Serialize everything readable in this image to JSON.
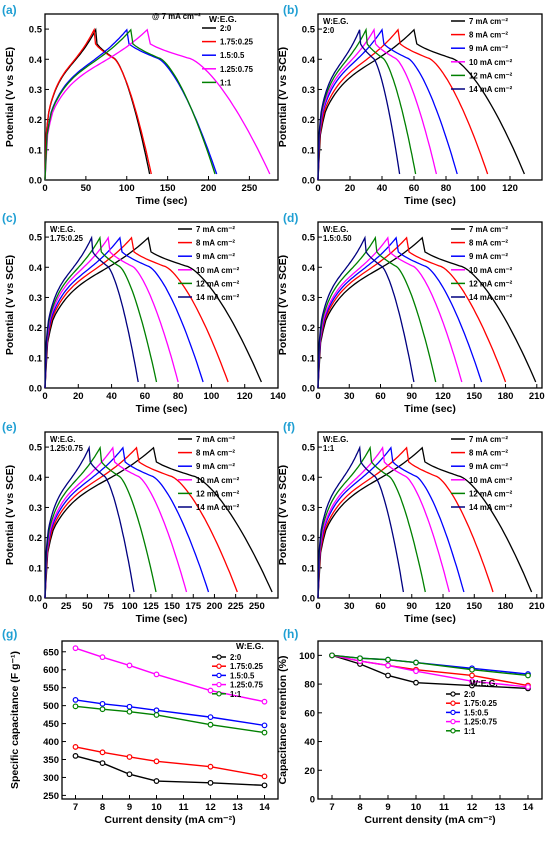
{
  "colors": {
    "2:0": "#000000",
    "1.75:0.25": "#ff0000",
    "1.5:0.5": "#0000ff",
    "1.25:0.75": "#ff00ff",
    "1:1": "#008000",
    "7 mA cm-2": "#000000",
    "8 mA cm-2": "#ff0000",
    "9 mA cm-2": "#0000ff",
    "10 mA cm-2": "#ff00ff",
    "12 mA cm-2": "#008000",
    "14 mA cm-2": "#000080",
    "panel_label": "#1f9fd3"
  },
  "chart_data": [
    {
      "id": "a",
      "panel_label": "(a)",
      "type": "line",
      "xlabel": "Time (sec)",
      "ylabel": "Potential (V vs SCE)",
      "xlim": [
        0,
        285
      ],
      "ylim": [
        0,
        0.55
      ],
      "xticks": [
        0,
        50,
        100,
        150,
        200,
        250
      ],
      "yticks": [
        0.0,
        0.1,
        0.2,
        0.3,
        0.4,
        0.5
      ],
      "annotation": "@ 7 mA cm⁻²",
      "legend_title": "W:E.G.",
      "legend_position": "top-right",
      "series": [
        {
          "name": "2:0",
          "color_key": "2:0",
          "tc": 62,
          "td": 128
        },
        {
          "name": "1.75:0.25",
          "color_key": "1.75:0.25",
          "tc": 60,
          "td": 130
        },
        {
          "name": "1.5:0.5",
          "color_key": "1.5:0.5",
          "tc": 100,
          "td": 210
        },
        {
          "name": "1.25:0.75",
          "color_key": "1.25:0.75",
          "tc": 125,
          "td": 275
        },
        {
          "name": "1:1",
          "color_key": "1:1",
          "tc": 105,
          "td": 208
        }
      ]
    },
    {
      "id": "b",
      "panel_label": "(b)",
      "type": "line",
      "xlabel": "Time (sec)",
      "ylabel": "Potential (V vs SCE)",
      "xlim": [
        0,
        140
      ],
      "ylim": [
        0,
        0.55
      ],
      "xticks": [
        0,
        20,
        40,
        60,
        80,
        100,
        120
      ],
      "yticks": [
        0.0,
        0.1,
        0.2,
        0.3,
        0.4,
        0.5
      ],
      "annotation": "W:E.G.\n2:0",
      "legend_position": "top-right",
      "series": [
        {
          "name": "7 mA cm⁻²",
          "color_key": "7 mA cm-2",
          "tc": 60,
          "td": 129
        },
        {
          "name": "8 mA cm⁻²",
          "color_key": "8 mA cm-2",
          "tc": 50,
          "td": 106
        },
        {
          "name": "9 mA cm⁻²",
          "color_key": "9 mA cm-2",
          "tc": 40,
          "td": 87
        },
        {
          "name": "10 mA cm⁻²",
          "color_key": "10 mA cm-2",
          "tc": 35,
          "td": 74
        },
        {
          "name": "12 mA cm⁻²",
          "color_key": "12 mA cm-2",
          "tc": 30,
          "td": 61
        },
        {
          "name": "14 mA cm⁻²",
          "color_key": "14 mA cm-2",
          "tc": 26,
          "td": 51
        }
      ]
    },
    {
      "id": "c",
      "panel_label": "(c)",
      "type": "line",
      "xlabel": "Time (sec)",
      "ylabel": "Potential (V vs SCE)",
      "xlim": [
        0,
        140
      ],
      "ylim": [
        0,
        0.55
      ],
      "xticks": [
        0,
        20,
        40,
        60,
        80,
        100,
        120,
        140
      ],
      "yticks": [
        0.0,
        0.1,
        0.2,
        0.3,
        0.4,
        0.5
      ],
      "annotation": "W:E.G.\n1.75:0.25",
      "legend_position": "top-right",
      "series": [
        {
          "name": "7 mA cm⁻²",
          "color_key": "7 mA cm-2",
          "tc": 62,
          "td": 130
        },
        {
          "name": "8 mA cm⁻²",
          "color_key": "8 mA cm-2",
          "tc": 52,
          "td": 110
        },
        {
          "name": "9 mA cm⁻²",
          "color_key": "9 mA cm-2",
          "tc": 45,
          "td": 95
        },
        {
          "name": "10 mA cm⁻²",
          "color_key": "10 mA cm-2",
          "tc": 38,
          "td": 80
        },
        {
          "name": "12 mA cm⁻²",
          "color_key": "12 mA cm-2",
          "tc": 33,
          "td": 67
        },
        {
          "name": "14 mA cm⁻²",
          "color_key": "14 mA cm-2",
          "tc": 28,
          "td": 56
        }
      ]
    },
    {
      "id": "d",
      "panel_label": "(d)",
      "type": "line",
      "xlabel": "Time (sec)",
      "ylabel": "Potential (V vs SCE)",
      "xlim": [
        0,
        215
      ],
      "ylim": [
        0,
        0.55
      ],
      "xticks": [
        0,
        30,
        60,
        90,
        120,
        150,
        180,
        210
      ],
      "yticks": [
        0.0,
        0.1,
        0.2,
        0.3,
        0.4,
        0.5
      ],
      "annotation": "W:E.G.\n1.5:0.50",
      "legend_position": "top-right",
      "series": [
        {
          "name": "7 mA cm⁻²",
          "color_key": "7 mA cm-2",
          "tc": 100,
          "td": 209
        },
        {
          "name": "8 mA cm⁻²",
          "color_key": "8 mA cm-2",
          "tc": 85,
          "td": 180
        },
        {
          "name": "9 mA cm⁻²",
          "color_key": "9 mA cm-2",
          "tc": 75,
          "td": 157
        },
        {
          "name": "10 mA cm⁻²",
          "color_key": "10 mA cm-2",
          "tc": 67,
          "td": 138
        },
        {
          "name": "12 mA cm⁻²",
          "color_key": "12 mA cm-2",
          "tc": 55,
          "td": 113
        },
        {
          "name": "14 mA cm⁻²",
          "color_key": "14 mA cm-2",
          "tc": 45,
          "td": 92
        }
      ]
    },
    {
      "id": "e",
      "panel_label": "(e)",
      "type": "line",
      "xlabel": "Time (sec)",
      "ylabel": "Potential (V vs SCE)",
      "xlim": [
        0,
        275
      ],
      "ylim": [
        0,
        0.55
      ],
      "xticks": [
        0,
        25,
        50,
        75,
        100,
        125,
        150,
        175,
        200,
        225,
        250
      ],
      "yticks": [
        0.0,
        0.1,
        0.2,
        0.3,
        0.4,
        0.5
      ],
      "annotation": "W:E.G.\n1.25:0.75",
      "legend_position": "top-right",
      "series": [
        {
          "name": "7 mA cm⁻²",
          "color_key": "7 mA cm-2",
          "tc": 128,
          "td": 268
        },
        {
          "name": "8 mA cm⁻²",
          "color_key": "8 mA cm-2",
          "tc": 108,
          "td": 227
        },
        {
          "name": "9 mA cm⁻²",
          "color_key": "9 mA cm-2",
          "tc": 92,
          "td": 193
        },
        {
          "name": "10 mA cm⁻²",
          "color_key": "10 mA cm-2",
          "tc": 80,
          "td": 167
        },
        {
          "name": "12 mA cm⁻²",
          "color_key": "12 mA cm-2",
          "tc": 65,
          "td": 131
        },
        {
          "name": "14 mA cm⁻²",
          "color_key": "14 mA cm-2",
          "tc": 52,
          "td": 105
        }
      ]
    },
    {
      "id": "f",
      "panel_label": "(f)",
      "type": "line",
      "xlabel": "Time (sec)",
      "ylabel": "Potential (V vs SCE)",
      "xlim": [
        0,
        215
      ],
      "ylim": [
        0,
        0.55
      ],
      "xticks": [
        0,
        30,
        60,
        90,
        120,
        150,
        180,
        210
      ],
      "yticks": [
        0.0,
        0.1,
        0.2,
        0.3,
        0.4,
        0.5
      ],
      "annotation": "W:E.G.\n1:1",
      "legend_position": "top-right",
      "series": [
        {
          "name": "7 mA cm⁻²",
          "color_key": "7 mA cm-2",
          "tc": 100,
          "td": 205
        },
        {
          "name": "8 mA cm⁻²",
          "color_key": "8 mA cm-2",
          "tc": 85,
          "td": 168
        },
        {
          "name": "9 mA cm⁻²",
          "color_key": "9 mA cm-2",
          "tc": 70,
          "td": 140
        },
        {
          "name": "10 mA cm⁻²",
          "color_key": "10 mA cm-2",
          "tc": 62,
          "td": 126
        },
        {
          "name": "12 mA cm⁻²",
          "color_key": "12 mA cm-2",
          "tc": 50,
          "td": 103
        },
        {
          "name": "14 mA cm⁻²",
          "color_key": "14 mA cm-2",
          "tc": 40,
          "td": 82
        }
      ]
    },
    {
      "id": "g",
      "panel_label": "(g)",
      "type": "line",
      "xlabel": "Current density (mA cm⁻²)",
      "ylabel": "Specific capacitance (F g⁻¹)",
      "xlim": [
        6.5,
        14.5
      ],
      "ylim": [
        240,
        680
      ],
      "xticks": [
        7,
        8,
        9,
        10,
        11,
        12,
        13,
        14
      ],
      "yticks": [
        250,
        300,
        350,
        400,
        450,
        500,
        550,
        600,
        650
      ],
      "legend_title": "W:E.G.",
      "legend_position": "top-right",
      "x": [
        7,
        8,
        9,
        10,
        12,
        14
      ],
      "series": [
        {
          "name": "2:0",
          "color_key": "2:0",
          "values": [
            360,
            340,
            309,
            290,
            285,
            278
          ]
        },
        {
          "name": "1.75:0.25",
          "color_key": "1.75:0.25",
          "values": [
            385,
            370,
            357,
            345,
            330,
            303
          ]
        },
        {
          "name": "1.5:0.5",
          "color_key": "1.5:0.5",
          "values": [
            516,
            505,
            497,
            487,
            468,
            445
          ]
        },
        {
          "name": "1.25:0.75",
          "color_key": "1.25:0.75",
          "values": [
            660,
            635,
            612,
            587,
            542,
            511
          ]
        },
        {
          "name": "1:1",
          "color_key": "1:1",
          "values": [
            498,
            490,
            483,
            474,
            447,
            425
          ]
        }
      ]
    },
    {
      "id": "h",
      "panel_label": "(h)",
      "type": "line",
      "xlabel": "Current density (mA cm⁻²)",
      "ylabel": "Capacitance retention (%)",
      "xlim": [
        6.5,
        14.5
      ],
      "ylim": [
        0,
        110
      ],
      "xticks": [
        7,
        8,
        9,
        10,
        11,
        12,
        13,
        14
      ],
      "yticks": [
        0,
        20,
        40,
        60,
        80,
        100
      ],
      "legend_title": "W:E.G.",
      "legend_position": "right",
      "x": [
        7,
        8,
        9,
        10,
        12,
        14
      ],
      "series": [
        {
          "name": "2:0",
          "color_key": "2:0",
          "values": [
            100,
            94,
            86,
            81,
            79,
            77
          ]
        },
        {
          "name": "1.75:0.25",
          "color_key": "1.75:0.25",
          "values": [
            100,
            96,
            93,
            90,
            86,
            79
          ]
        },
        {
          "name": "1.5:0.5",
          "color_key": "1.5:0.5",
          "values": [
            100,
            98,
            97,
            95,
            91,
            87
          ]
        },
        {
          "name": "1.25:0.75",
          "color_key": "1.25:0.75",
          "values": [
            100,
            96,
            93,
            89,
            82,
            78
          ]
        },
        {
          "name": "1:1",
          "color_key": "1:1",
          "values": [
            100,
            98,
            97,
            95,
            90,
            86
          ]
        }
      ]
    }
  ]
}
